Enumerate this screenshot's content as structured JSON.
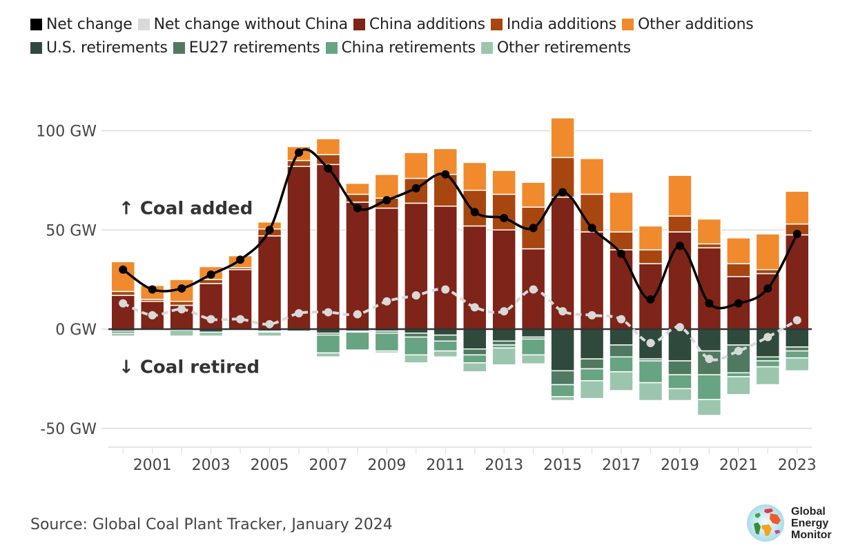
{
  "chart_data": {
    "type": "bar",
    "title": "",
    "xlabel": "",
    "ylabel": "",
    "ylim": [
      -60,
      110
    ],
    "y_ticks": [
      {
        "value": 100,
        "label": "100 GW"
      },
      {
        "value": 50,
        "label": "50 GW"
      },
      {
        "value": 0,
        "label": "0 GW"
      },
      {
        "value": -50,
        "label": "-50 GW"
      }
    ],
    "x_tick_labels": [
      "2001",
      "2003",
      "2005",
      "2007",
      "2009",
      "2011",
      "2013",
      "2015",
      "2017",
      "2019",
      "2021",
      "2023"
    ],
    "categories": [
      "2000",
      "2001",
      "2002",
      "2003",
      "2004",
      "2005",
      "2006",
      "2007",
      "2008",
      "2009",
      "2010",
      "2011",
      "2012",
      "2013",
      "2014",
      "2015",
      "2016",
      "2017",
      "2018",
      "2019",
      "2020",
      "2021",
      "2022",
      "2023"
    ],
    "grid": true,
    "legend_position": "top",
    "series": [
      {
        "name": "China additions",
        "kind": "bar-positive",
        "color": "#7f2418",
        "values": [
          17,
          14,
          12,
          23,
          30,
          47,
          82,
          83,
          64,
          61,
          63.5,
          62,
          52,
          50,
          40.5,
          66.5,
          49,
          40,
          33,
          49,
          41,
          26.5,
          28,
          47.5
        ]
      },
      {
        "name": "India additions",
        "kind": "bar-positive",
        "color": "#a8460f",
        "values": [
          2,
          1,
          2,
          2,
          1,
          3.5,
          3,
          5,
          4,
          5,
          12.5,
          16,
          18,
          18,
          21,
          20,
          19,
          9,
          7,
          8,
          2,
          6.5,
          2,
          5.5
        ]
      },
      {
        "name": "Other additions",
        "kind": "bar-positive",
        "color": "#f18a2c",
        "values": [
          15,
          7,
          11,
          6.5,
          6,
          3.5,
          7,
          8,
          5.5,
          12,
          13,
          13,
          14,
          12,
          12.5,
          20,
          18,
          20,
          12,
          20.5,
          12.5,
          13,
          18,
          16.5
        ]
      },
      {
        "name": "U.S. retirements",
        "kind": "bar-negative",
        "color": "#2f4a3c",
        "values": [
          -1,
          -0.5,
          -0.5,
          -1.5,
          -0.5,
          -1,
          -1,
          -2,
          -1,
          -1,
          -2,
          -3,
          -10,
          -6,
          -4,
          -21,
          -15,
          -8,
          -15,
          -16,
          -11,
          -8,
          -14,
          -9
        ]
      },
      {
        "name": "EU27 retirements",
        "kind": "bar-negative",
        "color": "#4f7a60",
        "values": [
          -1,
          0,
          0,
          0,
          0,
          -0.5,
          0,
          -1,
          -0.5,
          -1,
          -2,
          -3,
          -3,
          -2,
          -1,
          -7,
          -5,
          -6,
          -1,
          -7,
          -12,
          -14,
          -2,
          -2
        ]
      },
      {
        "name": "China retirements",
        "kind": "bar-negative",
        "color": "#67a482",
        "values": [
          0,
          0,
          0,
          0,
          0,
          0,
          0,
          -9,
          -9,
          -9,
          -9,
          -5,
          -4,
          -1.5,
          -8,
          -6,
          -6,
          -7.5,
          -11,
          -7,
          -12.5,
          -2,
          -3,
          -3.5
        ]
      },
      {
        "name": "Other retirements",
        "kind": "bar-negative",
        "color": "#9cc5ad",
        "values": [
          -1.5,
          -0.5,
          -3,
          -2,
          -0.5,
          -2,
          -0.5,
          -2,
          0,
          -1,
          -4,
          -3,
          -4.5,
          -8.5,
          -4.5,
          -2,
          -9,
          -9.5,
          -9,
          -6,
          -8,
          -9,
          -9,
          -6.5
        ]
      },
      {
        "name": "Net change",
        "kind": "line",
        "color": "#000000",
        "values": [
          30,
          20,
          20.5,
          27.5,
          35,
          50,
          89,
          81,
          61,
          65,
          71,
          78,
          59,
          56,
          51,
          69,
          51,
          38,
          15,
          42,
          13,
          13,
          20.5,
          48
        ]
      },
      {
        "name": "Net change without China",
        "kind": "line-dashed",
        "color": "#d9d9d9",
        "values": [
          13,
          7,
          10,
          5,
          5,
          2.5,
          8,
          8.5,
          7.5,
          14,
          17,
          20,
          11,
          9,
          20,
          9,
          7,
          5,
          -7,
          1,
          -15,
          -11,
          -4,
          4.5
        ]
      }
    ],
    "annotations": [
      {
        "text": "↑ Coal added",
        "at_value": 61
      },
      {
        "text": "↓ Coal retired",
        "at_value": -19
      }
    ]
  },
  "legend": {
    "row1": [
      {
        "label": "Net change",
        "color": "#000000"
      },
      {
        "label": "Net change without China",
        "color": "#d9d9d9"
      },
      {
        "label": "China additions",
        "color": "#7f2418"
      },
      {
        "label": "India additions",
        "color": "#a8460f"
      },
      {
        "label": "Other additions",
        "color": "#f18a2c"
      }
    ],
    "row2": [
      {
        "label": "U.S. retirements",
        "color": "#2f4a3c"
      },
      {
        "label": "EU27 retirements",
        "color": "#4f7a60"
      },
      {
        "label": "China retirements",
        "color": "#67a482"
      },
      {
        "label": "Other retirements",
        "color": "#9cc5ad"
      }
    ]
  },
  "footer": {
    "source": "Source: Global Coal Plant Tracker, January 2024",
    "logo_line1": "Global",
    "logo_line2": "Energy",
    "logo_line3": "Monitor"
  }
}
